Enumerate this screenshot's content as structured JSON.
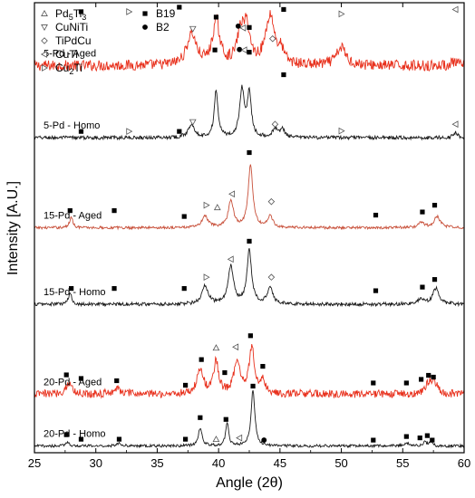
{
  "chart_data": {
    "type": "line",
    "xlabel": "Angle (2θ)",
    "ylabel": "Intensity [A.U.]",
    "xlim": [
      25,
      60
    ],
    "xticks": [
      25,
      30,
      35,
      40,
      45,
      50,
      55,
      60
    ],
    "show_y_ticks": false,
    "grid": false,
    "legend": {
      "placement": "top-left",
      "entries": [
        {
          "marker": "triangle-up-open",
          "label": "Pd",
          "sub": "5",
          "label2": "Ti",
          "sub2": "3"
        },
        {
          "marker": "triangle-down-open",
          "label": "CuNiTi"
        },
        {
          "marker": "diamond-open",
          "label": "TiPdCu"
        },
        {
          "marker": "triangle-left-open",
          "label": "CuTi"
        },
        {
          "marker": "triangle-right-open",
          "label": "Cu",
          "sub": "2",
          "label2": "Ti"
        },
        {
          "marker": "square-filled",
          "label": "B19"
        },
        {
          "marker": "circle-filled",
          "label": "B2"
        }
      ]
    },
    "series": [
      {
        "name": "5-Pd - Aged",
        "color": "#e8301c",
        "baseline": 0.86,
        "noise": 0.012,
        "peaks": [
          [
            37.8,
            0.07,
            0.45
          ],
          [
            39.8,
            0.095,
            0.35
          ],
          [
            41.8,
            0.07,
            0.35
          ],
          [
            42.3,
            0.075,
            0.3
          ],
          [
            44.2,
            0.11,
            0.45
          ],
          [
            45.1,
            0.025,
            0.25
          ],
          [
            50.0,
            0.04,
            0.45
          ],
          [
            59.2,
            0.008,
            0.3
          ]
        ],
        "markers": [
          {
            "x": 28.8,
            "m": "square-filled",
            "y": 0.98
          },
          {
            "x": 32.7,
            "m": "triangle-right-open",
            "y": 0.98
          },
          {
            "x": 36.8,
            "m": "square-filled",
            "y": 0.99
          },
          {
            "x": 37.9,
            "m": "triangle-down-open",
            "y": 0.942
          },
          {
            "x": 39.8,
            "m": "square-filled",
            "y": 0.968
          },
          {
            "x": 41.6,
            "m": "circle-filled",
            "y": 0.948
          },
          {
            "x": 42.0,
            "m": "triangle-left-open",
            "y": 0.944
          },
          {
            "x": 42.5,
            "m": "square-filled",
            "y": 0.945
          },
          {
            "x": 44.4,
            "m": "diamond-open",
            "y": 0.92
          },
          {
            "x": 45.3,
            "m": "square-filled",
            "y": 0.985
          },
          {
            "x": 50.0,
            "m": "triangle-right-open",
            "y": 0.975
          },
          {
            "x": 59.3,
            "m": "triangle-left-open",
            "y": 0.985
          }
        ]
      },
      {
        "name": "5-Pd - Homo",
        "color": "#1a1a1a",
        "baseline": 0.7,
        "noise": 0.004,
        "peaks": [
          [
            37.8,
            0.03,
            0.3
          ],
          [
            39.8,
            0.105,
            0.18
          ],
          [
            41.9,
            0.105,
            0.22
          ],
          [
            42.5,
            0.095,
            0.2
          ],
          [
            44.6,
            0.018,
            0.25
          ],
          [
            45.2,
            0.02,
            0.2
          ],
          [
            59.3,
            0.012,
            0.2
          ]
        ],
        "markers": [
          {
            "x": 28.8,
            "m": "square-filled",
            "y": 0.714
          },
          {
            "x": 32.7,
            "m": "triangle-right-open",
            "y": 0.714
          },
          {
            "x": 36.8,
            "m": "square-filled",
            "y": 0.714
          },
          {
            "x": 37.9,
            "m": "triangle-down-open",
            "y": 0.735
          },
          {
            "x": 39.7,
            "m": "square-filled",
            "y": 0.895
          },
          {
            "x": 41.7,
            "m": "circle-filled",
            "y": 0.896
          },
          {
            "x": 42.1,
            "m": "triangle-left-open",
            "y": 0.895
          },
          {
            "x": 42.5,
            "m": "square-filled",
            "y": 0.89
          },
          {
            "x": 44.6,
            "m": "diamond-open",
            "y": 0.73
          },
          {
            "x": 45.3,
            "m": "square-filled",
            "y": 0.84
          },
          {
            "x": 50.0,
            "m": "triangle-right-open",
            "y": 0.715
          },
          {
            "x": 59.3,
            "m": "triangle-left-open",
            "y": 0.73
          }
        ]
      },
      {
        "name": "15-Pd - Aged",
        "color": "#c8503a",
        "baseline": 0.5,
        "noise": 0.003,
        "peaks": [
          [
            28.0,
            0.025,
            0.15
          ],
          [
            38.9,
            0.025,
            0.3
          ],
          [
            41.0,
            0.06,
            0.25
          ],
          [
            42.6,
            0.14,
            0.22
          ],
          [
            44.2,
            0.025,
            0.25
          ],
          [
            56.5,
            0.012,
            0.25
          ],
          [
            57.8,
            0.025,
            0.3
          ]
        ],
        "markers": [
          {
            "x": 27.9,
            "m": "square-filled",
            "y": 0.538
          },
          {
            "x": 31.5,
            "m": "square-filled",
            "y": 0.538
          },
          {
            "x": 37.2,
            "m": "square-filled",
            "y": 0.525
          },
          {
            "x": 39.0,
            "m": "triangle-right-open",
            "y": 0.55
          },
          {
            "x": 39.9,
            "m": "triangle-up-open",
            "y": 0.545
          },
          {
            "x": 41.1,
            "m": "triangle-left-open",
            "y": 0.575
          },
          {
            "x": 42.5,
            "m": "square-filled",
            "y": 0.667
          },
          {
            "x": 44.3,
            "m": "diamond-open",
            "y": 0.558
          },
          {
            "x": 52.8,
            "m": "square-filled",
            "y": 0.528
          },
          {
            "x": 56.6,
            "m": "square-filled",
            "y": 0.535
          },
          {
            "x": 57.6,
            "m": "square-filled",
            "y": 0.55
          }
        ]
      },
      {
        "name": "15-Pd - Homo",
        "color": "#1a1a1a",
        "baseline": 0.33,
        "noise": 0.004,
        "peaks": [
          [
            27.9,
            0.025,
            0.15
          ],
          [
            38.9,
            0.04,
            0.3
          ],
          [
            41.0,
            0.085,
            0.25
          ],
          [
            42.5,
            0.12,
            0.22
          ],
          [
            44.2,
            0.04,
            0.25
          ],
          [
            56.5,
            0.012,
            0.25
          ],
          [
            57.7,
            0.035,
            0.3
          ]
        ],
        "markers": [
          {
            "x": 28.0,
            "m": "square-filled",
            "y": 0.365
          },
          {
            "x": 31.5,
            "m": "square-filled",
            "y": 0.365
          },
          {
            "x": 37.2,
            "m": "square-filled",
            "y": 0.365
          },
          {
            "x": 39.0,
            "m": "triangle-right-open",
            "y": 0.39
          },
          {
            "x": 41.0,
            "m": "triangle-left-open",
            "y": 0.43
          },
          {
            "x": 42.5,
            "m": "square-filled",
            "y": 0.47
          },
          {
            "x": 44.3,
            "m": "diamond-open",
            "y": 0.39
          },
          {
            "x": 52.8,
            "m": "square-filled",
            "y": 0.36
          },
          {
            "x": 56.6,
            "m": "square-filled",
            "y": 0.368
          },
          {
            "x": 57.6,
            "m": "square-filled",
            "y": 0.385
          }
        ]
      },
      {
        "name": "20-Pd - Aged",
        "color": "#e8301c",
        "baseline": 0.13,
        "noise": 0.009,
        "peaks": [
          [
            27.8,
            0.025,
            0.3
          ],
          [
            31.7,
            0.012,
            0.4
          ],
          [
            38.5,
            0.055,
            0.3
          ],
          [
            39.8,
            0.07,
            0.25
          ],
          [
            41.5,
            0.075,
            0.28
          ],
          [
            42.7,
            0.1,
            0.28
          ],
          [
            43.6,
            0.03,
            0.2
          ],
          [
            57.2,
            0.025,
            0.4
          ],
          [
            57.6,
            0.015,
            0.3
          ]
        ],
        "markers": [
          {
            "x": 27.6,
            "m": "square-filled",
            "y": 0.173
          },
          {
            "x": 28.8,
            "m": "square-filled",
            "y": 0.165
          },
          {
            "x": 31.7,
            "m": "square-filled",
            "y": 0.16
          },
          {
            "x": 37.3,
            "m": "square-filled",
            "y": 0.15
          },
          {
            "x": 38.6,
            "m": "square-filled",
            "y": 0.207
          },
          {
            "x": 39.8,
            "m": "triangle-up-open",
            "y": 0.233
          },
          {
            "x": 40.5,
            "m": "square-filled",
            "y": 0.178
          },
          {
            "x": 41.4,
            "m": "triangle-left-open",
            "y": 0.235
          },
          {
            "x": 42.6,
            "m": "square-filled",
            "y": 0.26
          },
          {
            "x": 43.6,
            "m": "square-filled",
            "y": 0.192
          },
          {
            "x": 52.6,
            "m": "square-filled",
            "y": 0.155
          },
          {
            "x": 55.3,
            "m": "square-filled",
            "y": 0.155
          },
          {
            "x": 56.5,
            "m": "square-filled",
            "y": 0.163
          },
          {
            "x": 57.1,
            "m": "square-filled",
            "y": 0.172
          },
          {
            "x": 57.5,
            "m": "square-filled",
            "y": 0.168
          }
        ]
      },
      {
        "name": "20-Pd - Homo",
        "color": "#1a1a1a",
        "baseline": 0.015,
        "noise": 0.003,
        "peaks": [
          [
            27.7,
            0.01,
            0.15
          ],
          [
            31.9,
            0.007,
            0.2
          ],
          [
            38.5,
            0.04,
            0.18
          ],
          [
            40.7,
            0.05,
            0.15
          ],
          [
            42.8,
            0.125,
            0.18
          ],
          [
            55.3,
            0.008,
            0.2
          ],
          [
            56.8,
            0.008,
            0.2
          ],
          [
            57.3,
            0.008,
            0.15
          ]
        ],
        "markers": [
          {
            "x": 27.6,
            "m": "square-filled",
            "y": 0.04
          },
          {
            "x": 28.8,
            "m": "square-filled",
            "y": 0.03
          },
          {
            "x": 31.9,
            "m": "square-filled",
            "y": 0.03
          },
          {
            "x": 37.3,
            "m": "square-filled",
            "y": 0.03
          },
          {
            "x": 38.5,
            "m": "square-filled",
            "y": 0.078
          },
          {
            "x": 39.8,
            "m": "triangle-up-open",
            "y": 0.03
          },
          {
            "x": 40.6,
            "m": "square-filled",
            "y": 0.074
          },
          {
            "x": 41.7,
            "m": "triangle-left-open",
            "y": 0.033
          },
          {
            "x": 42.8,
            "m": "square-filled",
            "y": 0.148
          },
          {
            "x": 43.7,
            "m": "circle-filled",
            "y": 0.028
          },
          {
            "x": 52.6,
            "m": "square-filled",
            "y": 0.028
          },
          {
            "x": 55.3,
            "m": "square-filled",
            "y": 0.036
          },
          {
            "x": 56.4,
            "m": "square-filled",
            "y": 0.033
          },
          {
            "x": 57.0,
            "m": "square-filled",
            "y": 0.038
          },
          {
            "x": 57.4,
            "m": "square-filled",
            "y": 0.028
          }
        ]
      }
    ]
  }
}
